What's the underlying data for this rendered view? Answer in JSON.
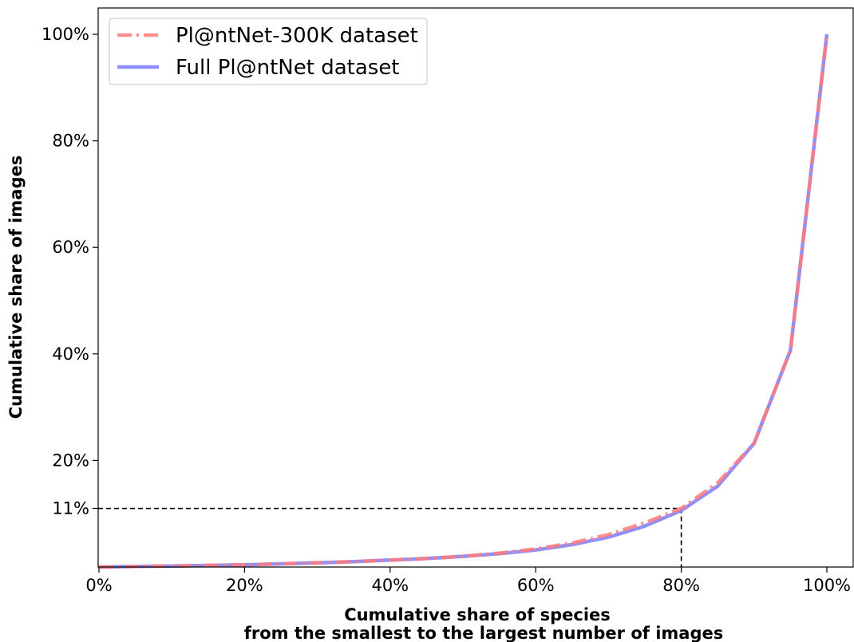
{
  "chart_data": {
    "type": "line",
    "xlabel_lines": [
      "Cumulative share of species",
      "from the smallest to the largest number of images"
    ],
    "ylabel": "Cumulative share of images",
    "xlim": [
      0,
      1.0
    ],
    "ylim": [
      0,
      1.0
    ],
    "grid": false,
    "legend_position": "top-left",
    "x_ticks": [
      {
        "value": 0.0,
        "label": "0%"
      },
      {
        "value": 0.2,
        "label": "20%"
      },
      {
        "value": 0.4,
        "label": "40%"
      },
      {
        "value": 0.6,
        "label": "60%"
      },
      {
        "value": 0.8,
        "label": "80%"
      },
      {
        "value": 1.0,
        "label": "100%"
      }
    ],
    "y_ticks": [
      {
        "value": 0.11,
        "label": "11%"
      },
      {
        "value": 0.2,
        "label": "20%"
      },
      {
        "value": 0.4,
        "label": "40%"
      },
      {
        "value": 0.6,
        "label": "60%"
      },
      {
        "value": 0.8,
        "label": "80%"
      },
      {
        "value": 1.0,
        "label": "100%"
      }
    ],
    "reference_point": {
      "x": 0.8,
      "y": 0.11
    },
    "series": [
      {
        "name": "Full Pl@ntNet dataset",
        "color": "#7b7bff",
        "style": "solid",
        "x": [
          0.0,
          0.05,
          0.1,
          0.15,
          0.2,
          0.25,
          0.3,
          0.35,
          0.4,
          0.45,
          0.5,
          0.55,
          0.6,
          0.65,
          0.7,
          0.75,
          0.8,
          0.85,
          0.9,
          0.95,
          1.0
        ],
        "y": [
          0.0,
          0.001,
          0.002,
          0.003,
          0.004,
          0.006,
          0.008,
          0.01,
          0.013,
          0.016,
          0.02,
          0.025,
          0.032,
          0.042,
          0.056,
          0.077,
          0.106,
          0.152,
          0.232,
          0.407,
          1.0
        ]
      },
      {
        "name": "Pl@ntNet-300K dataset",
        "color": "#ff7b7b",
        "style": "dashdot",
        "x": [
          0.0,
          0.05,
          0.1,
          0.15,
          0.2,
          0.25,
          0.3,
          0.35,
          0.4,
          0.45,
          0.5,
          0.55,
          0.6,
          0.65,
          0.7,
          0.75,
          0.8,
          0.85,
          0.9,
          0.95,
          1.0
        ],
        "y": [
          0.0,
          0.001,
          0.002,
          0.003,
          0.004,
          0.006,
          0.008,
          0.01,
          0.013,
          0.016,
          0.02,
          0.026,
          0.034,
          0.045,
          0.061,
          0.083,
          0.11,
          0.158,
          0.232,
          0.407,
          1.0
        ]
      }
    ],
    "legend_order": [
      "Pl@ntNet-300K dataset",
      "Full Pl@ntNet dataset"
    ]
  }
}
